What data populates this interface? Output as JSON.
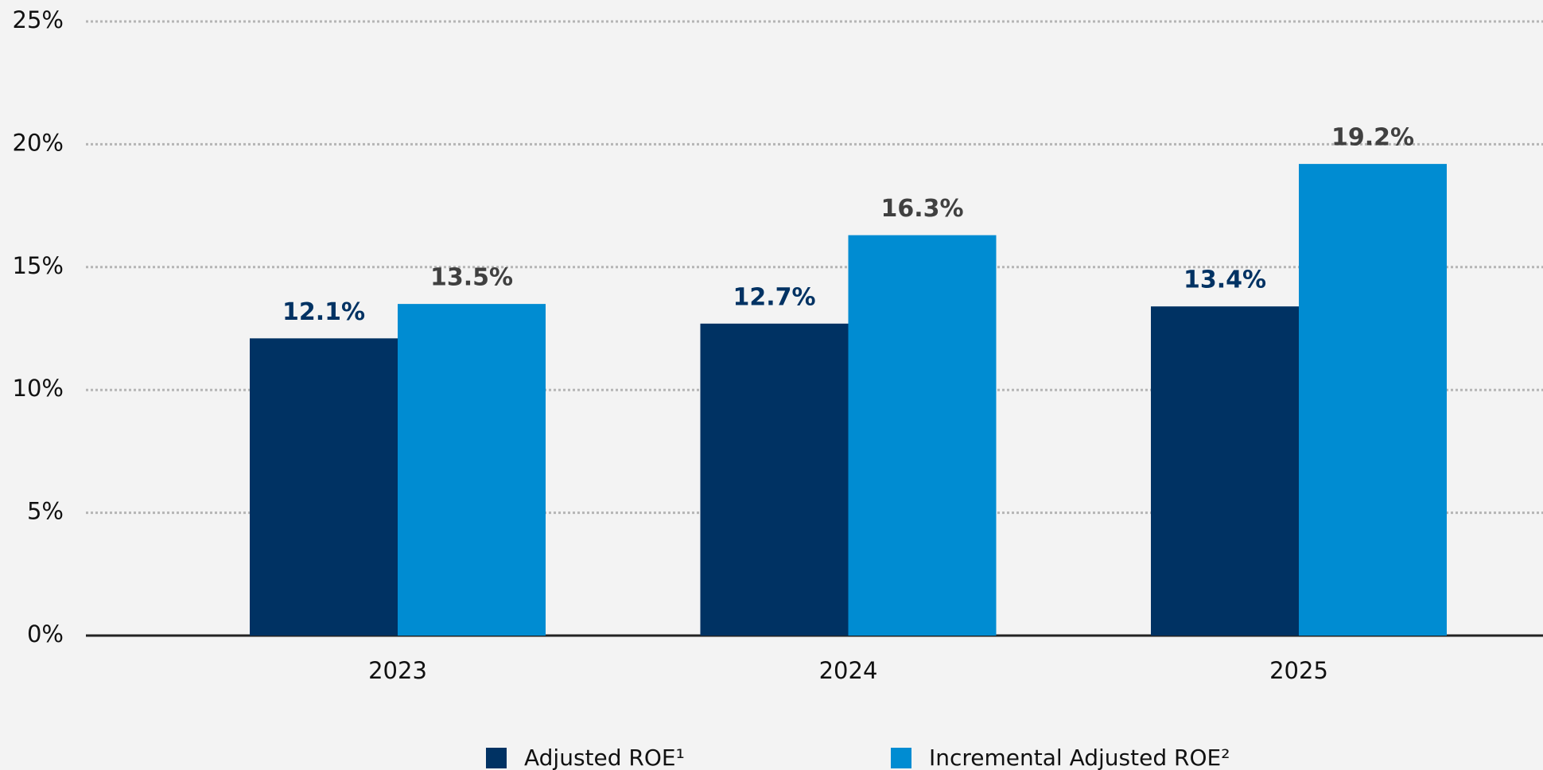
{
  "chart_data": {
    "type": "bar",
    "categories": [
      "2023",
      "2024",
      "2025"
    ],
    "series": [
      {
        "name": "Adjusted ROE¹",
        "color": "#003263",
        "label_color": "#003263",
        "values": [
          12.1,
          12.7,
          13.4
        ],
        "value_labels": [
          "12.1%",
          "12.7%",
          "13.4%"
        ]
      },
      {
        "name": "Incremental Adjusted ROE²",
        "color": "#008cd2",
        "label_color": "#404040",
        "values": [
          13.5,
          16.3,
          19.2
        ],
        "value_labels": [
          "13.5%",
          "16.3%",
          "19.2%"
        ]
      }
    ],
    "ylim": [
      0,
      25
    ],
    "yticks": [
      {
        "value": 0,
        "label": "0%"
      },
      {
        "value": 5,
        "label": "5%"
      },
      {
        "value": 10,
        "label": "10%"
      },
      {
        "value": 15,
        "label": "15%"
      },
      {
        "value": 20,
        "label": "20%"
      },
      {
        "value": 25,
        "label": "25%"
      }
    ],
    "grid": true,
    "legend": "bottom"
  }
}
